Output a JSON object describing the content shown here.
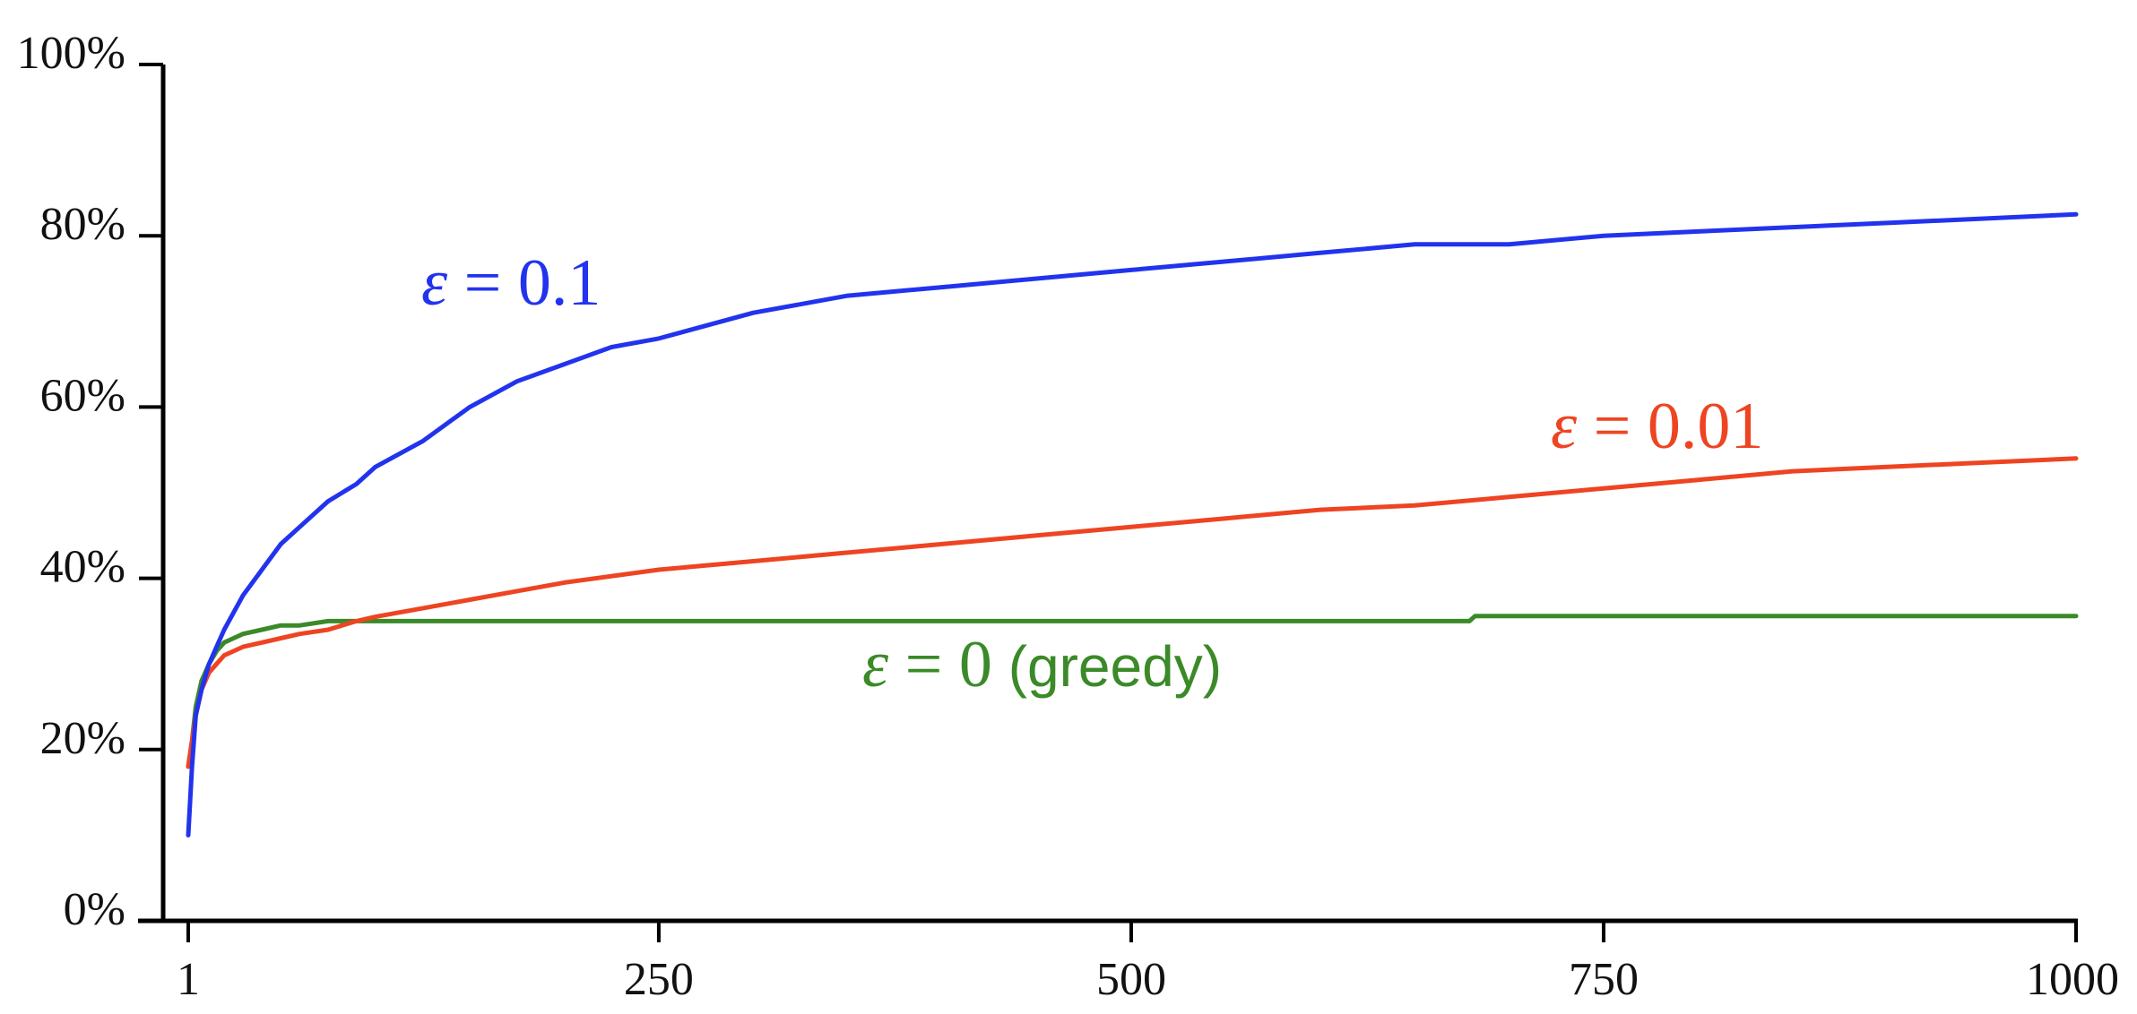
{
  "chart_data": {
    "type": "line",
    "title": "",
    "xlabel": "",
    "ylabel": "",
    "xlim": [
      1,
      1000
    ],
    "ylim": [
      0,
      100
    ],
    "x_ticks": [
      1,
      250,
      500,
      750,
      1000
    ],
    "x_tick_labels": [
      "1",
      "250",
      "500",
      "750",
      "1000"
    ],
    "y_ticks": [
      0,
      20,
      40,
      60,
      80,
      100
    ],
    "y_tick_labels": [
      "0%",
      "20%",
      "40%",
      "60%",
      "80%",
      "100%"
    ],
    "grid": false,
    "series": [
      {
        "name": "ε = 0.1",
        "label_parts": [
          "ε",
          " = 0.1"
        ],
        "color": "#2233ee",
        "x": [
          1,
          3,
          5,
          8,
          12,
          16,
          20,
          25,
          30,
          40,
          50,
          60,
          75,
          90,
          100,
          125,
          150,
          175,
          200,
          225,
          250,
          300,
          350,
          400,
          450,
          500,
          550,
          600,
          650,
          700,
          750,
          800,
          850,
          900,
          950,
          1000
        ],
        "y": [
          10,
          18,
          24,
          27,
          30,
          32,
          34,
          36,
          38,
          41,
          44,
          46,
          49,
          51,
          53,
          56,
          60,
          63,
          65,
          67,
          68,
          71,
          73,
          74,
          75,
          76,
          77,
          78,
          79,
          79,
          80,
          80.5,
          81,
          81.5,
          82,
          82.5
        ]
      },
      {
        "name": "ε = 0.01",
        "label_parts": [
          "ε",
          " = 0.01"
        ],
        "color": "#ee4422",
        "x": [
          1,
          3,
          5,
          8,
          12,
          16,
          20,
          25,
          30,
          40,
          50,
          60,
          75,
          90,
          100,
          125,
          150,
          175,
          200,
          250,
          300,
          350,
          400,
          450,
          500,
          550,
          600,
          650,
          700,
          750,
          800,
          850,
          900,
          950,
          1000
        ],
        "y": [
          18,
          21,
          24,
          27,
          29,
          30,
          31,
          31.5,
          32,
          32.5,
          33,
          33.5,
          34,
          35,
          35.5,
          36.5,
          37.5,
          38.5,
          39.5,
          41,
          42,
          43,
          44,
          45,
          46,
          47,
          48,
          48.5,
          49.5,
          50.5,
          51.5,
          52.5,
          53,
          53.5,
          54
        ]
      },
      {
        "name": "ε = 0 (greedy)",
        "label_parts": [
          "ε",
          " = 0",
          " (greedy)"
        ],
        "color": "#3a8a28",
        "x": [
          1,
          3,
          5,
          8,
          12,
          16,
          20,
          25,
          30,
          40,
          50,
          60,
          75,
          90,
          100,
          150,
          200,
          300,
          400,
          500,
          600,
          679,
          682,
          800,
          900,
          1000
        ],
        "y": [
          18,
          21,
          25,
          28,
          30,
          31.5,
          32.5,
          33,
          33.5,
          34,
          34.5,
          34.5,
          35,
          35,
          35,
          35,
          35,
          35,
          35,
          35,
          35,
          35,
          35.6,
          35.6,
          35.6,
          35.6
        ]
      }
    ]
  }
}
